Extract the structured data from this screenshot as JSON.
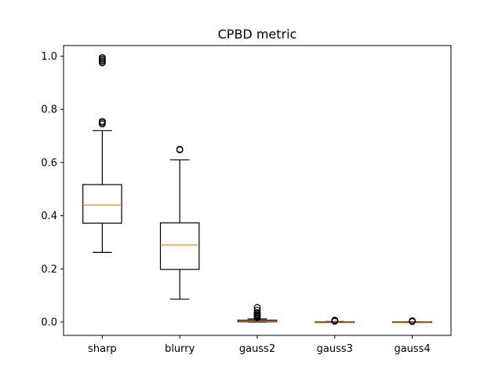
{
  "chart_data": {
    "type": "box",
    "title": "CPBD metric",
    "xlabel": "",
    "ylabel": "",
    "ylim": [
      -0.05,
      1.04
    ],
    "yticks": [
      0.0,
      0.2,
      0.4,
      0.6,
      0.8,
      1.0
    ],
    "ytick_labels": [
      "0.0",
      "0.2",
      "0.4",
      "0.6",
      "0.8",
      "1.0"
    ],
    "grid": false,
    "colors": {
      "box": "#000000",
      "median": "#ff7f0e",
      "outlier": "#000000"
    },
    "categories": [
      "sharp",
      "blurry",
      "gauss2",
      "gauss3",
      "gauss4"
    ],
    "boxes": [
      {
        "label": "sharp",
        "whislo": 0.262,
        "q1": 0.372,
        "med": 0.44,
        "q3": 0.517,
        "whishi": 0.72,
        "fliers": [
          0.745,
          0.75,
          0.755,
          0.975,
          0.98,
          0.985,
          0.99,
          0.995
        ]
      },
      {
        "label": "blurry",
        "whislo": 0.086,
        "q1": 0.198,
        "med": 0.29,
        "q3": 0.373,
        "whishi": 0.61,
        "fliers": [
          0.648,
          0.65
        ]
      },
      {
        "label": "gauss2",
        "whislo": 0.0,
        "q1": 0.001,
        "med": 0.003,
        "q3": 0.007,
        "whishi": 0.012,
        "fliers": [
          0.016,
          0.02,
          0.024,
          0.028,
          0.032,
          0.036,
          0.045,
          0.055
        ]
      },
      {
        "label": "gauss3",
        "whislo": 0.0,
        "q1": 0.0,
        "med": 0.0,
        "q3": 0.001,
        "whishi": 0.002,
        "fliers": [
          0.003,
          0.005,
          0.007
        ]
      },
      {
        "label": "gauss4",
        "whislo": 0.0,
        "q1": 0.0,
        "med": 0.0,
        "q3": 0.001,
        "whishi": 0.001,
        "fliers": [
          0.002,
          0.004,
          0.005
        ]
      }
    ]
  }
}
